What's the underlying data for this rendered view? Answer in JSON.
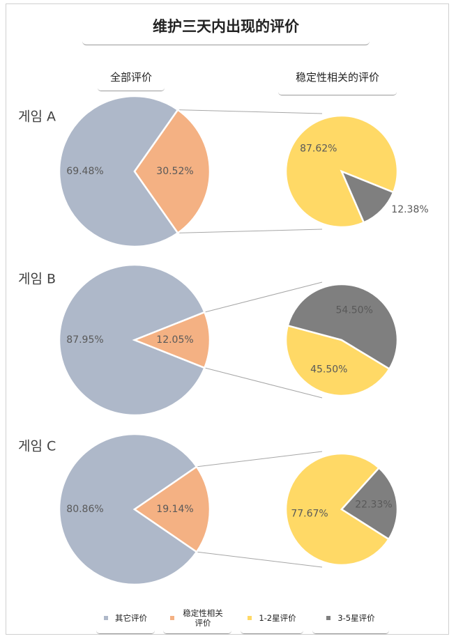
{
  "title": "维护三天内出现的评价",
  "columns": {
    "all": "全部评价",
    "stability": "稳定性相关的评价"
  },
  "colors": {
    "other": "#aeb8c9",
    "stability": "#f4b183",
    "star12": "#ffd966",
    "star35": "#7f7f7f"
  },
  "legend": [
    {
      "label": "其它评价",
      "color": "#aeb8c9"
    },
    {
      "label": "稳定性相关评价",
      "color": "#f4b183"
    },
    {
      "label": "1-2星评价",
      "color": "#ffd966"
    },
    {
      "label": "3-5星评价",
      "color": "#7f7f7f"
    }
  ],
  "chart_data": [
    {
      "type": "pie",
      "game": "게임 A",
      "all_reviews": [
        {
          "name": "其它评价",
          "value": 69.48,
          "label": "69.48%"
        },
        {
          "name": "稳定性相关评价",
          "value": 30.52,
          "label": "30.52%"
        }
      ],
      "stability_reviews": [
        {
          "name": "1-2星评价",
          "value": 87.62,
          "label": "87.62%"
        },
        {
          "name": "3-5星评价",
          "value": 12.38,
          "label": "12.38%"
        }
      ]
    },
    {
      "type": "pie",
      "game": "게임 B",
      "all_reviews": [
        {
          "name": "其它评价",
          "value": 87.95,
          "label": "87.95%"
        },
        {
          "name": "稳定性相关评价",
          "value": 12.05,
          "label": "12.05%"
        }
      ],
      "stability_reviews": [
        {
          "name": "1-2星评价",
          "value": 45.5,
          "label": "45.50%"
        },
        {
          "name": "3-5星评价",
          "value": 54.5,
          "label": "54.50%"
        }
      ]
    },
    {
      "type": "pie",
      "game": "게임 C",
      "all_reviews": [
        {
          "name": "其它评价",
          "value": 80.86,
          "label": "80.86%"
        },
        {
          "name": "稳定性相关评价",
          "value": 19.14,
          "label": "19.14%"
        }
      ],
      "stability_reviews": [
        {
          "name": "1-2星评价",
          "value": 77.67,
          "label": "77.67%"
        },
        {
          "name": "3-5星评价",
          "value": 22.33,
          "label": "22.33%"
        }
      ]
    }
  ]
}
